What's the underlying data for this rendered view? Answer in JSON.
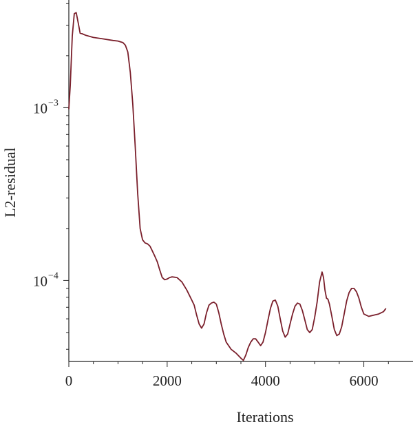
{
  "chart_data": {
    "type": "line",
    "title": "",
    "xlabel": "Iterations",
    "ylabel": "L2-residual",
    "xlim": [
      0,
      7000
    ],
    "ylim": [
      3.4e-05,
      0.0042
    ],
    "yscale": "log",
    "grid": false,
    "x_ticks": [
      0,
      2000,
      4000,
      6000
    ],
    "x_tick_labels": [
      "0",
      "2000",
      "4000",
      "6000"
    ],
    "y_ticks": [
      0.001,
      0.0001
    ],
    "y_tick_labels": [
      {
        "base": "10",
        "exp": "−3"
      },
      {
        "base": "10",
        "exp": "−4"
      }
    ],
    "line_color": "#7a1f2b",
    "series": [
      {
        "x": [
          0,
          30,
          70,
          110,
          150,
          190,
          230,
          270,
          350,
          500,
          700,
          900,
          1000,
          1100,
          1150,
          1200,
          1250,
          1300,
          1350,
          1400,
          1450,
          1500,
          1550,
          1600,
          1650,
          1700,
          1750,
          1800,
          1850,
          1900,
          1950,
          2000,
          2050,
          2100,
          2200,
          2300,
          2400,
          2500,
          2550,
          2600,
          2650,
          2700,
          2750,
          2800,
          2850,
          2900,
          2950,
          3000,
          3050,
          3100,
          3150,
          3200,
          3300,
          3400,
          3500,
          3550,
          3600,
          3650,
          3700,
          3750,
          3800,
          3850,
          3900,
          3950,
          4000,
          4050,
          4100,
          4150,
          4200,
          4250,
          4300,
          4350,
          4400,
          4450,
          4500,
          4550,
          4600,
          4650,
          4700,
          4750,
          4800,
          4850,
          4900,
          4950,
          5000,
          5050,
          5100,
          5150,
          5180,
          5210,
          5240,
          5270,
          5300,
          5350,
          5400,
          5450,
          5500,
          5550,
          5600,
          5650,
          5700,
          5750,
          5800,
          5850,
          5900,
          5950,
          6000,
          6100,
          6200,
          6300,
          6400,
          6450
        ],
        "y": [
          0.00098,
          0.00135,
          0.0026,
          0.0035,
          0.00355,
          0.0031,
          0.0027,
          0.00268,
          0.00262,
          0.00255,
          0.0025,
          0.00245,
          0.00243,
          0.00238,
          0.0023,
          0.0021,
          0.0016,
          0.00105,
          0.0006,
          0.00032,
          0.0002,
          0.000172,
          0.000165,
          0.000163,
          0.000158,
          0.000148,
          0.000138,
          0.000128,
          0.000115,
          0.000104,
          0.000101,
          0.000102,
          0.000104,
          0.000105,
          0.000104,
          9.8e-05,
          8.8e-05,
          7.7e-05,
          7.2e-05,
          6.3e-05,
          5.6e-05,
          5.3e-05,
          5.6e-05,
          6.5e-05,
          7.2e-05,
          7.4e-05,
          7.5e-05,
          7.3e-05,
          6.5e-05,
          5.6e-05,
          4.9e-05,
          4.4e-05,
          4e-05,
          3.8e-05,
          3.55e-05,
          3.45e-05,
          3.7e-05,
          4.1e-05,
          4.4e-05,
          4.6e-05,
          4.6e-05,
          4.4e-05,
          4.2e-05,
          4.4e-05,
          5e-05,
          5.9e-05,
          6.9e-05,
          7.6e-05,
          7.7e-05,
          7.1e-05,
          6e-05,
          5.1e-05,
          4.7e-05,
          4.9e-05,
          5.6e-05,
          6.4e-05,
          7.1e-05,
          7.4e-05,
          7.3e-05,
          6.7e-05,
          5.9e-05,
          5.2e-05,
          5e-05,
          5.2e-05,
          6.1e-05,
          7.5e-05,
          9.8e-05,
          0.000112,
          0.000104,
          8.8e-05,
          7.9e-05,
          7.8e-05,
          7.3e-05,
          6.2e-05,
          5.2e-05,
          4.8e-05,
          4.9e-05,
          5.4e-05,
          6.4e-05,
          7.6e-05,
          8.5e-05,
          9e-05,
          9e-05,
          8.6e-05,
          7.9e-05,
          7e-05,
          6.4e-05,
          6.2e-05,
          6.3e-05,
          6.4e-05,
          6.6e-05,
          6.9e-05
        ]
      }
    ]
  }
}
